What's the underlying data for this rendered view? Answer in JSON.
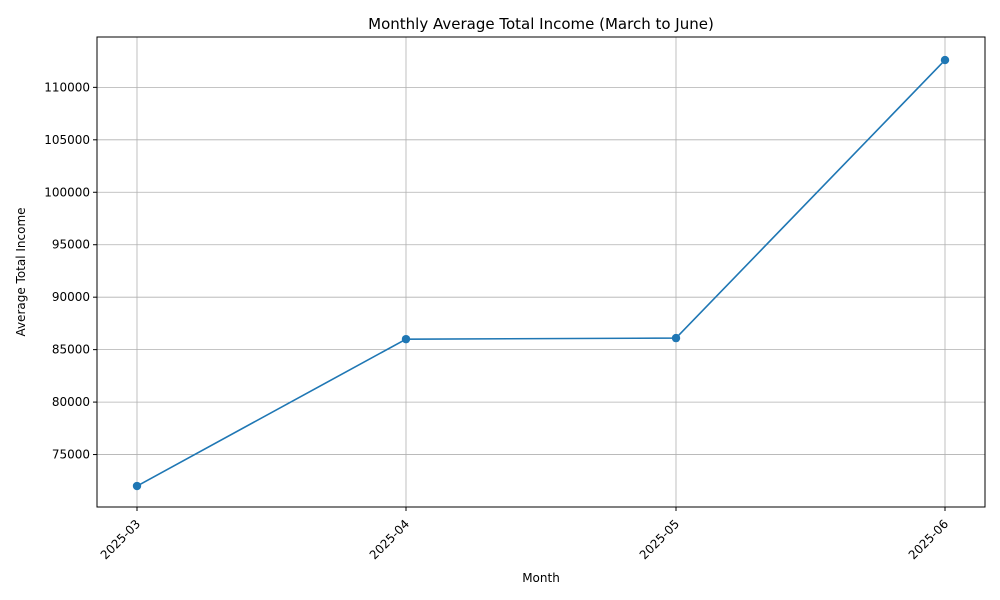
{
  "chart_data": {
    "type": "line",
    "title": "Monthly Average Total Income (March to June)",
    "xlabel": "Month",
    "ylabel": "Average Total Income",
    "categories": [
      "2025-03",
      "2025-04",
      "2025-05",
      "2025-06"
    ],
    "series": [
      {
        "values": [
          72000,
          86000,
          86100,
          112600
        ]
      }
    ],
    "yticks": [
      75000,
      80000,
      85000,
      90000,
      95000,
      100000,
      105000,
      110000
    ],
    "ylim": [
      70000,
      114800
    ],
    "grid": true,
    "x_tick_rotation_deg": 45,
    "marker": "circle",
    "line_color": "#1f77b4"
  }
}
